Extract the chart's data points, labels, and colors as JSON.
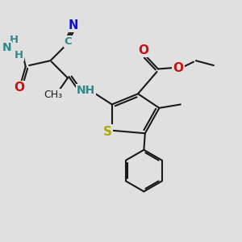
{
  "bg_color": "#e0e0e0",
  "bond_color": "#1a1a1a",
  "bond_width": 1.5,
  "atom_colors": {
    "C": "#2d8b8b",
    "N": "#1010cc",
    "O": "#cc1010",
    "S": "#aaaa00",
    "H": "#2d8b8b",
    "black": "#1a1a1a"
  }
}
